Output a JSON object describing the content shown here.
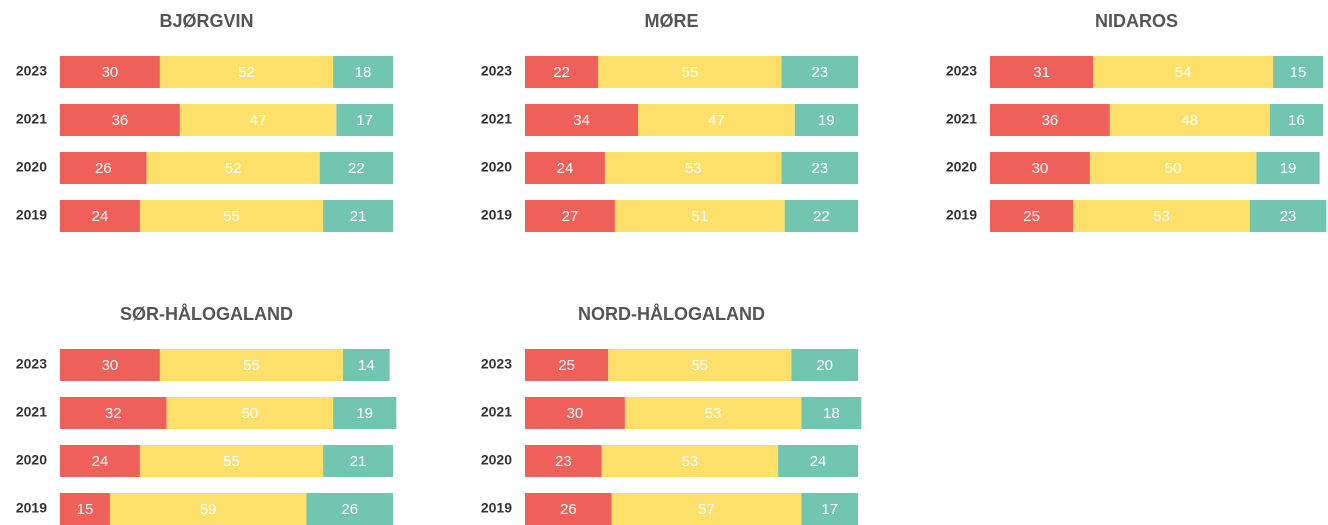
{
  "chart_data": [
    {
      "type": "bar",
      "orientation": "horizontal",
      "stacked": true,
      "title": "BJØRGVIN",
      "categories": [
        "2023",
        "2021",
        "2020",
        "2019"
      ],
      "xlim": [
        0,
        100
      ],
      "series": [
        {
          "color": "#f0605a",
          "values": [
            30,
            36,
            26,
            24
          ]
        },
        {
          "color": "#fde06a",
          "values": [
            52,
            47,
            52,
            55
          ]
        },
        {
          "color": "#72c6b0",
          "values": [
            18,
            17,
            22,
            21
          ]
        }
      ]
    },
    {
      "type": "bar",
      "orientation": "horizontal",
      "stacked": true,
      "title": "MØRE",
      "categories": [
        "2023",
        "2021",
        "2020",
        "2019"
      ],
      "xlim": [
        0,
        100
      ],
      "series": [
        {
          "color": "#f0605a",
          "values": [
            22,
            34,
            24,
            27
          ]
        },
        {
          "color": "#fde06a",
          "values": [
            55,
            47,
            53,
            51
          ]
        },
        {
          "color": "#72c6b0",
          "values": [
            23,
            19,
            23,
            22
          ]
        }
      ]
    },
    {
      "type": "bar",
      "orientation": "horizontal",
      "stacked": true,
      "title": "NIDAROS",
      "categories": [
        "2023",
        "2021",
        "2020",
        "2019"
      ],
      "xlim": [
        0,
        100
      ],
      "series": [
        {
          "color": "#f0605a",
          "values": [
            31,
            36,
            30,
            25
          ]
        },
        {
          "color": "#fde06a",
          "values": [
            54,
            48,
            50,
            53
          ]
        },
        {
          "color": "#72c6b0",
          "values": [
            15,
            16,
            19,
            23
          ]
        }
      ]
    },
    {
      "type": "bar",
      "orientation": "horizontal",
      "stacked": true,
      "title": "SØR-HÅLOGALAND",
      "categories": [
        "2023",
        "2021",
        "2020",
        "2019"
      ],
      "xlim": [
        0,
        100
      ],
      "series": [
        {
          "color": "#f0605a",
          "values": [
            30,
            32,
            24,
            15
          ]
        },
        {
          "color": "#fde06a",
          "values": [
            55,
            50,
            55,
            59
          ]
        },
        {
          "color": "#72c6b0",
          "values": [
            14,
            19,
            21,
            26
          ]
        }
      ]
    },
    {
      "type": "bar",
      "orientation": "horizontal",
      "stacked": true,
      "title": "NORD-HÅLOGALAND",
      "categories": [
        "2023",
        "2021",
        "2020",
        "2019"
      ],
      "xlim": [
        0,
        100
      ],
      "series": [
        {
          "color": "#f0605a",
          "values": [
            25,
            30,
            23,
            26
          ]
        },
        {
          "color": "#fde06a",
          "values": [
            55,
            53,
            53,
            57
          ]
        },
        {
          "color": "#72c6b0",
          "values": [
            20,
            18,
            24,
            17
          ]
        }
      ]
    }
  ]
}
